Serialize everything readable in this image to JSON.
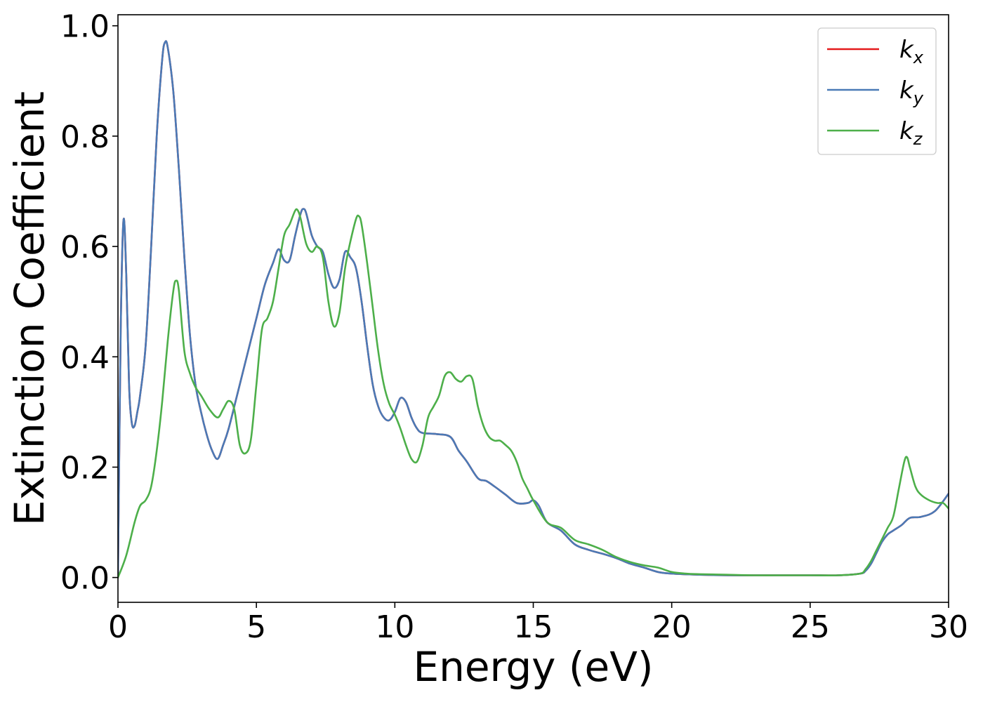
{
  "chart_data": {
    "type": "line",
    "xlabel": "Energy (eV)",
    "ylabel": "Extinction Coefficient",
    "xlim": [
      0,
      30
    ],
    "ylim": [
      -0.045,
      1.02
    ],
    "xticks": [
      0,
      5,
      10,
      15,
      20,
      25,
      30
    ],
    "xtick_labels": [
      "0",
      "5",
      "10",
      "15",
      "20",
      "25",
      "30"
    ],
    "yticks": [
      0.0,
      0.2,
      0.4,
      0.6,
      0.8,
      1.0
    ],
    "ytick_labels": [
      "0.0",
      "0.2",
      "0.4",
      "0.6",
      "0.8",
      "1.0"
    ],
    "grid": false,
    "legend_position": "top-right",
    "series": [
      {
        "name": "k",
        "subscript": "x",
        "color": "#e41a1c",
        "x": [
          0,
          0.1,
          0.2,
          0.3,
          0.4,
          0.5,
          0.6,
          0.7,
          0.8,
          1.0,
          1.2,
          1.4,
          1.6,
          1.7,
          1.8,
          2.0,
          2.2,
          2.4,
          2.6,
          2.8,
          3.0,
          3.2,
          3.4,
          3.6,
          3.8,
          4.0,
          4.3,
          4.6,
          5.0,
          5.3,
          5.6,
          5.8,
          6.0,
          6.2,
          6.4,
          6.6,
          6.7,
          6.8,
          7.0,
          7.2,
          7.4,
          7.6,
          7.8,
          8.0,
          8.2,
          8.4,
          8.6,
          8.8,
          9.0,
          9.2,
          9.4,
          9.6,
          9.8,
          10.0,
          10.2,
          10.4,
          10.6,
          10.8,
          11.0,
          11.5,
          12.0,
          12.3,
          12.6,
          13.0,
          13.3,
          13.6,
          14.0,
          14.4,
          14.8,
          15.0,
          15.2,
          15.5,
          16.0,
          16.5,
          17.0,
          17.5,
          18.0,
          18.5,
          19.0,
          19.5,
          20.0,
          21.0,
          22.0,
          23.0,
          24.0,
          25.0,
          26.0,
          26.8,
          27.0,
          27.2,
          27.4,
          27.6,
          27.8,
          28.0,
          28.3,
          28.6,
          29.0,
          29.5,
          30.0
        ],
        "y": [
          0.0,
          0.45,
          0.648,
          0.55,
          0.35,
          0.28,
          0.275,
          0.3,
          0.33,
          0.42,
          0.6,
          0.8,
          0.94,
          0.97,
          0.96,
          0.88,
          0.74,
          0.58,
          0.44,
          0.35,
          0.3,
          0.26,
          0.23,
          0.215,
          0.24,
          0.27,
          0.33,
          0.39,
          0.47,
          0.53,
          0.57,
          0.595,
          0.575,
          0.575,
          0.62,
          0.66,
          0.668,
          0.66,
          0.62,
          0.6,
          0.59,
          0.55,
          0.525,
          0.54,
          0.59,
          0.58,
          0.56,
          0.5,
          0.42,
          0.35,
          0.31,
          0.29,
          0.285,
          0.3,
          0.325,
          0.318,
          0.29,
          0.27,
          0.262,
          0.26,
          0.255,
          0.23,
          0.21,
          0.18,
          0.175,
          0.165,
          0.15,
          0.135,
          0.135,
          0.14,
          0.13,
          0.1,
          0.085,
          0.06,
          0.05,
          0.043,
          0.035,
          0.025,
          0.018,
          0.01,
          0.007,
          0.005,
          0.004,
          0.004,
          0.004,
          0.004,
          0.004,
          0.007,
          0.012,
          0.025,
          0.045,
          0.065,
          0.078,
          0.085,
          0.095,
          0.108,
          0.11,
          0.12,
          0.152
        ]
      },
      {
        "name": "k",
        "subscript": "y",
        "color": "#4a7ab6",
        "x": [
          0,
          0.1,
          0.2,
          0.3,
          0.4,
          0.5,
          0.6,
          0.7,
          0.8,
          1.0,
          1.2,
          1.4,
          1.6,
          1.7,
          1.8,
          2.0,
          2.2,
          2.4,
          2.6,
          2.8,
          3.0,
          3.2,
          3.4,
          3.6,
          3.8,
          4.0,
          4.3,
          4.6,
          5.0,
          5.3,
          5.6,
          5.8,
          6.0,
          6.2,
          6.4,
          6.6,
          6.7,
          6.8,
          7.0,
          7.2,
          7.4,
          7.6,
          7.8,
          8.0,
          8.2,
          8.4,
          8.6,
          8.8,
          9.0,
          9.2,
          9.4,
          9.6,
          9.8,
          10.0,
          10.2,
          10.4,
          10.6,
          10.8,
          11.0,
          11.5,
          12.0,
          12.3,
          12.6,
          13.0,
          13.3,
          13.6,
          14.0,
          14.4,
          14.8,
          15.0,
          15.2,
          15.5,
          16.0,
          16.5,
          17.0,
          17.5,
          18.0,
          18.5,
          19.0,
          19.5,
          20.0,
          21.0,
          22.0,
          23.0,
          24.0,
          25.0,
          26.0,
          26.8,
          27.0,
          27.2,
          27.4,
          27.6,
          27.8,
          28.0,
          28.3,
          28.6,
          29.0,
          29.5,
          30.0
        ],
        "y": [
          0.0,
          0.45,
          0.648,
          0.55,
          0.35,
          0.28,
          0.275,
          0.3,
          0.33,
          0.42,
          0.6,
          0.8,
          0.94,
          0.97,
          0.96,
          0.88,
          0.74,
          0.58,
          0.44,
          0.35,
          0.3,
          0.26,
          0.23,
          0.215,
          0.24,
          0.27,
          0.33,
          0.39,
          0.47,
          0.53,
          0.57,
          0.595,
          0.575,
          0.575,
          0.62,
          0.66,
          0.668,
          0.66,
          0.62,
          0.6,
          0.59,
          0.55,
          0.525,
          0.54,
          0.59,
          0.58,
          0.56,
          0.5,
          0.42,
          0.35,
          0.31,
          0.29,
          0.285,
          0.3,
          0.325,
          0.318,
          0.29,
          0.27,
          0.262,
          0.26,
          0.255,
          0.23,
          0.21,
          0.18,
          0.175,
          0.165,
          0.15,
          0.135,
          0.135,
          0.14,
          0.13,
          0.1,
          0.085,
          0.06,
          0.05,
          0.043,
          0.035,
          0.025,
          0.018,
          0.01,
          0.007,
          0.005,
          0.004,
          0.004,
          0.004,
          0.004,
          0.004,
          0.007,
          0.012,
          0.025,
          0.045,
          0.065,
          0.078,
          0.085,
          0.095,
          0.108,
          0.11,
          0.12,
          0.152
        ]
      },
      {
        "name": "k",
        "subscript": "z",
        "color": "#4daf4a",
        "x": [
          0,
          0.3,
          0.6,
          0.8,
          1.0,
          1.2,
          1.4,
          1.6,
          1.8,
          2.0,
          2.1,
          2.2,
          2.4,
          2.6,
          2.8,
          3.0,
          3.3,
          3.6,
          3.8,
          4.0,
          4.2,
          4.4,
          4.6,
          4.8,
          5.0,
          5.2,
          5.4,
          5.6,
          5.8,
          6.0,
          6.2,
          6.4,
          6.5,
          6.6,
          6.8,
          7.0,
          7.2,
          7.4,
          7.6,
          7.8,
          8.0,
          8.2,
          8.4,
          8.6,
          8.7,
          8.8,
          9.0,
          9.2,
          9.4,
          9.6,
          9.8,
          10.0,
          10.2,
          10.4,
          10.6,
          10.8,
          11.0,
          11.2,
          11.4,
          11.6,
          11.8,
          12.0,
          12.2,
          12.4,
          12.6,
          12.8,
          13.0,
          13.2,
          13.4,
          13.6,
          13.8,
          14.0,
          14.2,
          14.4,
          14.6,
          14.8,
          15.0,
          15.5,
          16.0,
          16.5,
          17.0,
          17.5,
          18.0,
          18.5,
          19.0,
          19.5,
          20.0,
          20.5,
          21.0,
          22.0,
          23.0,
          24.0,
          25.0,
          26.0,
          26.8,
          27.0,
          27.2,
          27.4,
          27.6,
          27.8,
          28.0,
          28.2,
          28.4,
          28.5,
          28.6,
          28.8,
          29.0,
          29.3,
          29.6,
          29.8,
          30.0
        ],
        "y": [
          0.0,
          0.04,
          0.1,
          0.13,
          0.14,
          0.165,
          0.23,
          0.32,
          0.43,
          0.52,
          0.538,
          0.52,
          0.41,
          0.37,
          0.345,
          0.33,
          0.305,
          0.29,
          0.305,
          0.32,
          0.305,
          0.24,
          0.225,
          0.25,
          0.35,
          0.45,
          0.47,
          0.5,
          0.56,
          0.62,
          0.64,
          0.665,
          0.665,
          0.65,
          0.605,
          0.59,
          0.6,
          0.58,
          0.5,
          0.455,
          0.48,
          0.56,
          0.61,
          0.65,
          0.655,
          0.64,
          0.57,
          0.49,
          0.41,
          0.35,
          0.315,
          0.295,
          0.27,
          0.24,
          0.215,
          0.21,
          0.24,
          0.29,
          0.31,
          0.33,
          0.365,
          0.372,
          0.36,
          0.355,
          0.365,
          0.36,
          0.31,
          0.275,
          0.255,
          0.248,
          0.248,
          0.24,
          0.23,
          0.21,
          0.18,
          0.16,
          0.14,
          0.1,
          0.09,
          0.068,
          0.06,
          0.05,
          0.037,
          0.028,
          0.022,
          0.018,
          0.01,
          0.007,
          0.006,
          0.005,
          0.004,
          0.004,
          0.004,
          0.004,
          0.007,
          0.015,
          0.03,
          0.05,
          0.07,
          0.09,
          0.11,
          0.16,
          0.21,
          0.218,
          0.2,
          0.165,
          0.15,
          0.14,
          0.135,
          0.135,
          0.125
        ]
      }
    ]
  }
}
